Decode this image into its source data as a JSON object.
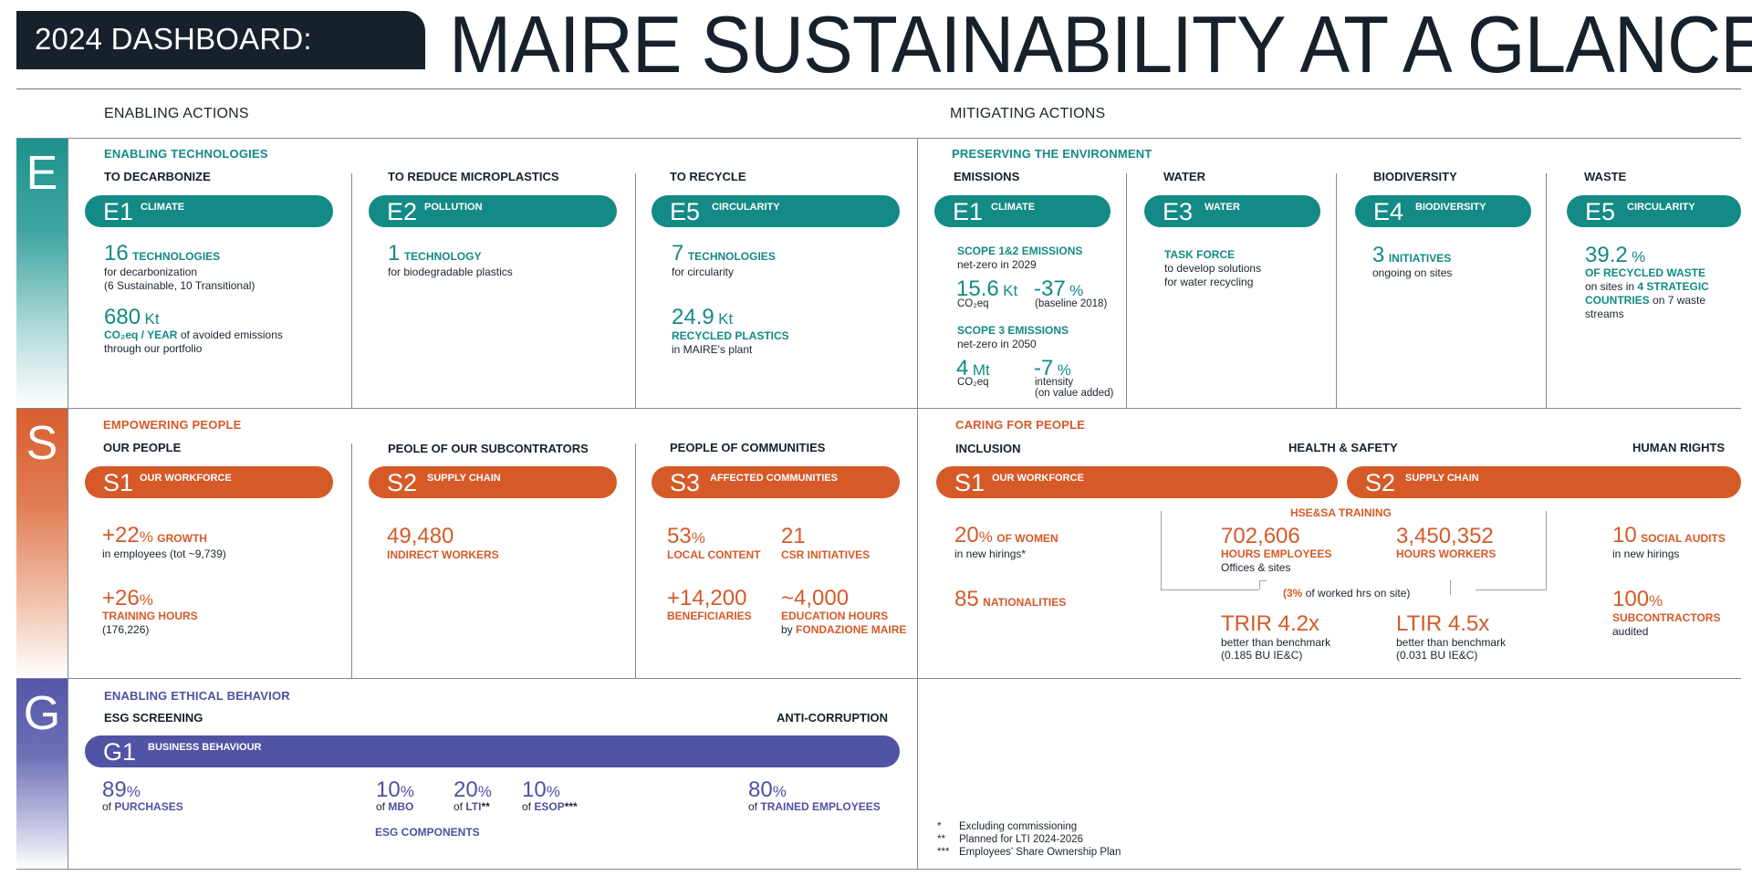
{
  "header": {
    "badge": "2024 DASHBOARD:",
    "title": "MAIRE SUSTAINABILITY AT A GLANCE"
  },
  "sections": {
    "enabling": "ENABLING ACTIONS",
    "mitigating": "MITIGATING ACTIONS"
  },
  "strips": {
    "e": "E",
    "s": "S",
    "g": "G"
  },
  "colors": {
    "teal": "#138a86",
    "orange": "#d55a28",
    "purple": "#5153a4",
    "navy": "#16212c"
  },
  "e_left": {
    "category": "ENABLING TECHNOLOGIES",
    "col1": {
      "sub": "TO DECARBONIZE",
      "code": "E1",
      "pill": "CLIMATE",
      "m1_num": "16",
      "m1_label": "TECHNOLOGIES",
      "m1_t1": "for decarbonization",
      "m1_t2": "(6 Sustainable, 10 Transitional)",
      "m2_num": "680",
      "m2_unit": "Kt",
      "m2_label": "CO₂eq / YEAR",
      "m2_t1": "of avoided emissions",
      "m2_t2": "through our portfolio"
    },
    "col2": {
      "sub": "TO REDUCE MICROPLASTICS",
      "code": "E2",
      "pill": "POLLUTION",
      "m1_num": "1",
      "m1_label": "TECHNOLOGY",
      "m1_t1": "for biodegradable plastics"
    },
    "col3": {
      "sub": "TO RECYCLE",
      "code": "E5",
      "pill": "CIRCULARITY",
      "m1_num": "7",
      "m1_label": "TECHNOLOGIES",
      "m1_t1": "for circularity",
      "m2_num": "24.9",
      "m2_unit": "Kt",
      "m2_label": "RECYCLED PLASTICS",
      "m2_t1": "in MAIRE's plant"
    }
  },
  "e_right": {
    "category": "PRESERVING THE ENVIRONMENT",
    "emissions": {
      "sub": "EMISSIONS",
      "code": "E1",
      "pill": "CLIMATE",
      "s12_label": "SCOPE 1&2 EMISSIONS",
      "s12_t": "net-zero in 2029",
      "s12_a_num": "15.6",
      "s12_a_unit": "Kt",
      "s12_a_t": "CO₂eq",
      "s12_b_num": "-37",
      "s12_b_unit": "%",
      "s12_b_t": "(baseline 2018)",
      "s3_label": "SCOPE 3 EMISSIONS",
      "s3_t": "net-zero in 2050",
      "s3_a_num": "4",
      "s3_a_unit": "Mt",
      "s3_a_t": "CO₂eq",
      "s3_b_num": "-7",
      "s3_b_unit": "%",
      "s3_b_t1": "intensity",
      "s3_b_t2": "(on value added)"
    },
    "water": {
      "sub": "WATER",
      "code": "E3",
      "pill": "WATER",
      "label": "TASK FORCE",
      "t1": "to develop solutions",
      "t2": "for water recycling"
    },
    "biodiversity": {
      "sub": "BIODIVERSITY",
      "code": "E4",
      "pill": "BIODIVERSITY",
      "num": "3",
      "label": "INITIATIVES",
      "t1": "ongoing on sites"
    },
    "waste": {
      "sub": "WASTE",
      "code": "E5",
      "pill": "CIRCULARITY",
      "num": "39.2",
      "unit": "%",
      "label": "OF RECYCLED WASTE",
      "t1": "on sites in",
      "t1b": "4 STRATEGIC",
      "t2": "COUNTRIES",
      "t2b": "on 7 waste",
      "t3": "streams"
    }
  },
  "s_left": {
    "category": "EMPOWERING PEOPLE",
    "col1": {
      "sub": "OUR PEOPLE",
      "code": "S1",
      "pill": "OUR WORKFORCE",
      "m1_num": "+22",
      "m1_unit": "%",
      "m1_label": "GROWTH",
      "m1_t1": "in employees (tot ~9,739)",
      "m2_num": "+26",
      "m2_unit": "%",
      "m2_label": "TRAINING HOURS",
      "m2_t1": "(176,226)"
    },
    "col2": {
      "sub": "PEOLE OF OUR SUBCONTRATORS",
      "code": "S2",
      "pill": "SUPPLY CHAIN",
      "m1_num": "49,480",
      "m1_label": "INDIRECT WORKERS"
    },
    "col3": {
      "sub": "PEOPLE OF COMMUNITIES",
      "code": "S3",
      "pill": "AFFECTED COMMUNITIES",
      "a_num": "53",
      "a_unit": "%",
      "a_label": "LOCAL CONTENT",
      "b_num": "21",
      "b_label": "CSR INITIATIVES",
      "c_num": "+14,200",
      "c_label": "BENEFICIARIES",
      "d_num": "~4,000",
      "d_label": "EDUCATION HOURS",
      "d_t": "by",
      "d_tb": "FONDAZIONE MAIRE"
    }
  },
  "s_right": {
    "category": "CARING FOR PEOPLE",
    "inclusion": "INCLUSION",
    "health": "HEALTH & SAFETY",
    "rights": "HUMAN RIGHTS",
    "pill1_code": "S1",
    "pill1": "OUR WORKFORCE",
    "pill2_code": "S2",
    "pill2": "SUPPLY CHAIN",
    "women_num": "20",
    "women_unit": "%",
    "women_label": "OF WOMEN",
    "women_t": "in new hirings*",
    "nat_num": "85",
    "nat_label": "NATIONALITIES",
    "hse_title": "HSE&SA TRAINING",
    "hse_a_num": "702,606",
    "hse_a_label": "HOURS EMPLOYEES",
    "hse_a_t": "Offices & sites",
    "hse_b_num": "3,450,352",
    "hse_b_label": "HOURS WORKERS",
    "hse_note_a": "(3%",
    "hse_note_b": "of worked hrs on site)",
    "trir_label": "TRIR 4.2x",
    "trir_t1": "better than benchmark",
    "trir_t2": "(0.185 BU IE&C)",
    "ltir_label": "LTIR 4.5x",
    "ltir_t1": "better than benchmark",
    "ltir_t2": "(0.031 BU IE&C)",
    "audits_num": "10",
    "audits_label": "SOCIAL AUDITS",
    "audits_t": "in new hirings",
    "subc_num": "100",
    "subc_unit": "%",
    "subc_label": "SUBCONTRACTORS",
    "subc_t": "audited"
  },
  "g": {
    "category": "ENABLING ETHICAL BEHAVIOR",
    "esg": "ESG SCREENING",
    "anti": "ANTI-CORRUPTION",
    "code": "G1",
    "pill": "BUSINESS BEHAVIOUR",
    "p_num": "89",
    "p_unit": "%",
    "p_t": "of",
    "p_tb": "PURCHASES",
    "mbo_num": "10",
    "mbo_unit": "%",
    "mbo_t": "of",
    "mbo_tb": "MBO",
    "lti_num": "20",
    "lti_unit": "%",
    "lti_t": "of",
    "lti_tb": "LTI",
    "lti_star": "**",
    "esop_num": "10",
    "esop_unit": "%",
    "esop_t": "of",
    "esop_tb": "ESOP",
    "esop_star": "***",
    "esg_components": "ESG COMPONENTS",
    "tr_num": "80",
    "tr_unit": "%",
    "tr_t": "of",
    "tr_tb": "TRAINED EMPLOYEES"
  },
  "footnotes": [
    {
      "mark": "*",
      "text": "Excluding commissioning"
    },
    {
      "mark": "**",
      "text": "Planned for LTI 2024-2026"
    },
    {
      "mark": "***",
      "text": "Employees' Share Ownership Plan"
    }
  ]
}
